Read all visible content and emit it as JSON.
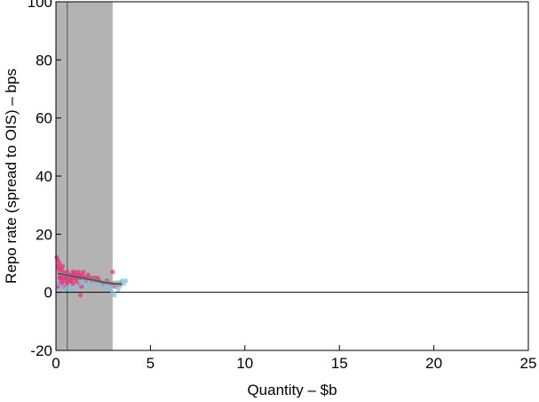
{
  "chart_data": {
    "type": "scatter",
    "title": "",
    "xlabel": "Quantity – $b",
    "ylabel": "Repo rate (spread to OIS) – bps",
    "xlim": [
      0,
      25
    ],
    "ylim": [
      -20,
      100
    ],
    "xticks": [
      "0",
      "5",
      "10",
      "15",
      "20",
      "25"
    ],
    "yticks": [
      "100",
      "80",
      "60",
      "40",
      "20",
      "0",
      "-20"
    ],
    "grid": false,
    "legend": "none",
    "shaded_band": {
      "x": [
        0,
        3
      ],
      "color": "#b3b3b3"
    },
    "vertical_line": {
      "x": 0.6,
      "color": "#555555"
    },
    "zero_line": {
      "y": 0,
      "color": "#000000"
    },
    "fit_curve": {
      "color": "#555555",
      "band_color": "#a0a0a0",
      "x": [
        0.1,
        0.5,
        1.0,
        1.5,
        2.0,
        2.5,
        3.0,
        3.5
      ],
      "y": [
        6.5,
        6.0,
        5.4,
        4.8,
        4.2,
        3.5,
        3.0,
        2.8
      ],
      "band_lower": [
        5.8,
        5.5,
        5.0,
        4.4,
        3.7,
        2.8,
        2.0,
        1.5
      ],
      "band_upper": [
        7.2,
        6.5,
        5.8,
        5.2,
        4.7,
        4.2,
        4.0,
        4.1
      ]
    },
    "series": [
      {
        "color": "#e8307a",
        "points": [
          [
            0.05,
            12
          ],
          [
            0.1,
            11
          ],
          [
            0.12,
            9
          ],
          [
            0.15,
            8
          ],
          [
            0.18,
            10
          ],
          [
            0.2,
            7
          ],
          [
            0.22,
            6
          ],
          [
            0.25,
            5
          ],
          [
            0.28,
            4
          ],
          [
            0.3,
            8
          ],
          [
            0.3,
            3
          ],
          [
            0.35,
            6
          ],
          [
            0.38,
            2
          ],
          [
            0.4,
            7
          ],
          [
            0.42,
            5
          ],
          [
            0.45,
            4
          ],
          [
            0.5,
            6
          ],
          [
            0.55,
            5
          ],
          [
            0.6,
            7
          ],
          [
            0.65,
            6
          ],
          [
            0.7,
            5
          ],
          [
            0.75,
            4
          ],
          [
            0.8,
            6
          ],
          [
            0.85,
            5
          ],
          [
            0.9,
            7
          ],
          [
            0.95,
            6
          ],
          [
            1.0,
            5
          ],
          [
            1.05,
            4
          ],
          [
            1.1,
            6
          ],
          [
            1.15,
            5
          ],
          [
            1.2,
            3
          ],
          [
            1.25,
            6
          ],
          [
            1.3,
            5
          ],
          [
            1.35,
            2
          ],
          [
            1.4,
            6
          ],
          [
            1.45,
            7
          ],
          [
            1.5,
            5
          ],
          [
            1.3,
            -1
          ],
          [
            1.55,
            4
          ],
          [
            1.6,
            5
          ],
          [
            1.7,
            6
          ],
          [
            1.8,
            5
          ],
          [
            1.9,
            4
          ],
          [
            2.0,
            5
          ],
          [
            2.1,
            4
          ],
          [
            2.2,
            5
          ],
          [
            2.3,
            4
          ],
          [
            2.5,
            3
          ],
          [
            2.7,
            4
          ],
          [
            2.9,
            3
          ],
          [
            3.0,
            7
          ],
          [
            3.1,
            2
          ],
          [
            0.2,
            5
          ],
          [
            0.15,
            3
          ],
          [
            0.1,
            2
          ],
          [
            0.35,
            9
          ],
          [
            0.6,
            3
          ],
          [
            0.8,
            4
          ],
          [
            1.0,
            7
          ],
          [
            1.2,
            7
          ],
          [
            0.9,
            3
          ]
        ]
      },
      {
        "color": "#7fc1e3",
        "points": [
          [
            0.1,
            3
          ],
          [
            0.3,
            2
          ],
          [
            0.5,
            1
          ],
          [
            0.7,
            2
          ],
          [
            0.9,
            1
          ],
          [
            1.1,
            2
          ],
          [
            1.3,
            3
          ],
          [
            1.5,
            4
          ],
          [
            1.8,
            3
          ],
          [
            2.0,
            4
          ],
          [
            2.2,
            3
          ],
          [
            2.4,
            2
          ],
          [
            2.6,
            3
          ],
          [
            2.8,
            1
          ],
          [
            3.0,
            0
          ],
          [
            3.1,
            -1
          ],
          [
            3.2,
            2
          ],
          [
            3.4,
            3
          ],
          [
            3.5,
            4
          ],
          [
            3.6,
            3
          ],
          [
            3.7,
            4
          ],
          [
            3.3,
            1
          ],
          [
            2.9,
            2
          ],
          [
            1.6,
            2
          ]
        ]
      }
    ]
  }
}
